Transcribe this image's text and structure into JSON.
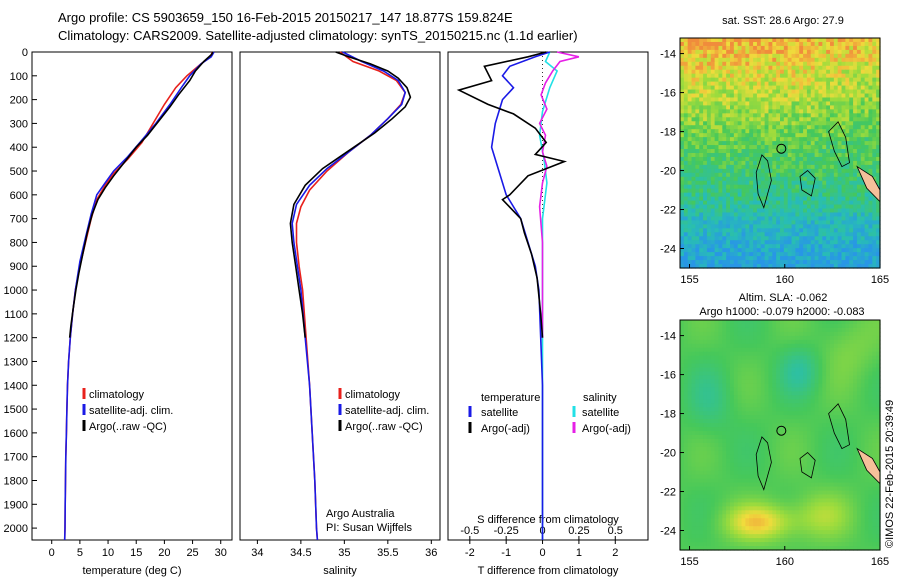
{
  "header": {
    "line1": "Argo profile: CS 5903659_150 16-Feb-2015 20150217_147 18.877S 159.824E",
    "line2": "Climatology: CARS2009. Satellite-adjusted climatology: synTS_20150215.nc (1.1d earlier)"
  },
  "credit": "©IMOS 22-Feb-2015 20:39:49",
  "colors": {
    "clim": "#e8211c",
    "sat": "#1a1ae6",
    "argo": "#000000",
    "sat_s": "#22e0e6",
    "argo_s": "#e620e6"
  },
  "chart_data": [
    {
      "type": "line",
      "name": "temperature",
      "xlabel": "temperature (deg C)",
      "ylabel": "",
      "xlim": [
        -3.5,
        32
      ],
      "ylim": [
        2050,
        0
      ],
      "xticks": [
        0,
        5,
        10,
        15,
        20,
        25,
        30
      ],
      "yticks": [
        0,
        100,
        200,
        300,
        400,
        500,
        600,
        700,
        800,
        900,
        1000,
        1100,
        1200,
        1300,
        1400,
        1500,
        1600,
        1700,
        1800,
        1900,
        2000
      ],
      "legend": [
        "climatology",
        "satellite-adj. clim.",
        "Argo(..raw -QC)"
      ],
      "series": [
        {
          "name": "climatology",
          "color": "clim",
          "points": [
            [
              28.5,
              0
            ],
            [
              28.2,
              20
            ],
            [
              26.5,
              50
            ],
            [
              24,
              100
            ],
            [
              22,
              150
            ],
            [
              20,
              220
            ],
            [
              18,
              300
            ],
            [
              16,
              380
            ],
            [
              13.5,
              450
            ],
            [
              11,
              510
            ],
            [
              9.5,
              560
            ],
            [
              8,
              620
            ],
            [
              7,
              700
            ],
            [
              6,
              800
            ],
            [
              5,
              900
            ],
            [
              4.2,
              1000
            ],
            [
              3.7,
              1100
            ],
            [
              3.3,
              1200
            ],
            [
              3,
              1300
            ],
            [
              2.8,
              1400
            ],
            [
              2.7,
              1500
            ],
            [
              2.6,
              1600
            ],
            [
              2.5,
              1700
            ],
            [
              2.45,
              1800
            ],
            [
              2.4,
              1900
            ],
            [
              2.35,
              2000
            ],
            [
              2.3,
              2050
            ]
          ]
        },
        {
          "name": "satellite-adj. clim.",
          "color": "sat",
          "points": [
            [
              28.8,
              0
            ],
            [
              28.3,
              20
            ],
            [
              26.5,
              50
            ],
            [
              24.5,
              100
            ],
            [
              23,
              150
            ],
            [
              21,
              220
            ],
            [
              18.5,
              300
            ],
            [
              16,
              370
            ],
            [
              13.5,
              440
            ],
            [
              11,
              500
            ],
            [
              9.5,
              550
            ],
            [
              8,
              600
            ],
            [
              7,
              680
            ],
            [
              6,
              780
            ],
            [
              5,
              880
            ],
            [
              4.2,
              1000
            ],
            [
              3.7,
              1100
            ],
            [
              3.3,
              1200
            ],
            [
              3,
              1300
            ],
            [
              2.8,
              1400
            ],
            [
              2.7,
              1500
            ],
            [
              2.6,
              1600
            ],
            [
              2.5,
              1700
            ],
            [
              2.45,
              1800
            ],
            [
              2.4,
              1900
            ],
            [
              2.35,
              2000
            ],
            [
              2.3,
              2050
            ]
          ]
        },
        {
          "name": "Argo(..raw -QC)",
          "color": "argo",
          "points": [
            [
              28.6,
              0
            ],
            [
              28.4,
              10
            ],
            [
              27,
              40
            ],
            [
              25.5,
              80
            ],
            [
              24.5,
              120
            ],
            [
              22.5,
              180
            ],
            [
              21,
              230
            ],
            [
              19,
              290
            ],
            [
              17,
              350
            ],
            [
              15,
              400
            ],
            [
              13,
              460
            ],
            [
              11,
              520
            ],
            [
              9.5,
              570
            ],
            [
              8.2,
              620
            ],
            [
              7.2,
              680
            ],
            [
              6.3,
              760
            ],
            [
              5.5,
              850
            ],
            [
              4.8,
              930
            ],
            [
              4.3,
              1000
            ],
            [
              3.8,
              1080
            ],
            [
              3.4,
              1150
            ],
            [
              3.2,
              1200
            ]
          ]
        }
      ]
    },
    {
      "type": "line",
      "name": "salinity",
      "xlabel": "salinity",
      "ylabel": "",
      "xlim": [
        33.8,
        36.1
      ],
      "ylim": [
        2050,
        0
      ],
      "xticks": [
        34,
        34.5,
        35,
        35.5,
        36
      ],
      "legend": [
        "climatology",
        "satellite-adj. clim.",
        "Argo(..raw -QC)"
      ],
      "annotation": [
        "Argo Australia",
        "PI: Susan Wijffels"
      ],
      "series": [
        {
          "name": "climatology",
          "color": "clim",
          "points": [
            [
              34.95,
              0
            ],
            [
              35.1,
              40
            ],
            [
              35.4,
              80
            ],
            [
              35.6,
              120
            ],
            [
              35.7,
              170
            ],
            [
              35.65,
              220
            ],
            [
              35.5,
              280
            ],
            [
              35.3,
              350
            ],
            [
              35.05,
              420
            ],
            [
              34.8,
              500
            ],
            [
              34.6,
              580
            ],
            [
              34.5,
              650
            ],
            [
              34.45,
              720
            ],
            [
              34.45,
              800
            ],
            [
              34.48,
              900
            ],
            [
              34.52,
              1000
            ],
            [
              34.56,
              1200
            ],
            [
              34.6,
              1400
            ],
            [
              34.63,
              1600
            ],
            [
              34.66,
              1800
            ],
            [
              34.68,
              2000
            ],
            [
              34.69,
              2050
            ]
          ]
        },
        {
          "name": "satellite-adj. clim.",
          "color": "sat",
          "points": [
            [
              34.98,
              0
            ],
            [
              35.2,
              40
            ],
            [
              35.45,
              80
            ],
            [
              35.62,
              120
            ],
            [
              35.7,
              170
            ],
            [
              35.66,
              220
            ],
            [
              35.5,
              280
            ],
            [
              35.3,
              350
            ],
            [
              35.05,
              420
            ],
            [
              34.8,
              490
            ],
            [
              34.6,
              560
            ],
            [
              34.45,
              640
            ],
            [
              34.4,
              720
            ],
            [
              34.42,
              800
            ],
            [
              34.46,
              900
            ],
            [
              34.5,
              1000
            ],
            [
              34.55,
              1200
            ],
            [
              34.6,
              1400
            ],
            [
              34.63,
              1600
            ],
            [
              34.66,
              1800
            ],
            [
              34.68,
              2000
            ],
            [
              34.69,
              2050
            ]
          ]
        },
        {
          "name": "Argo(..raw -QC)",
          "color": "argo",
          "points": [
            [
              34.9,
              0
            ],
            [
              35.05,
              20
            ],
            [
              35.3,
              50
            ],
            [
              35.5,
              80
            ],
            [
              35.62,
              110
            ],
            [
              35.72,
              150
            ],
            [
              35.76,
              190
            ],
            [
              35.7,
              230
            ],
            [
              35.55,
              280
            ],
            [
              35.35,
              340
            ],
            [
              35.15,
              390
            ],
            [
              34.95,
              440
            ],
            [
              34.75,
              490
            ],
            [
              34.55,
              560
            ],
            [
              34.42,
              640
            ],
            [
              34.38,
              720
            ],
            [
              34.4,
              800
            ],
            [
              34.44,
              900
            ],
            [
              34.48,
              1000
            ],
            [
              34.52,
              1100
            ],
            [
              34.55,
              1200
            ]
          ]
        }
      ]
    },
    {
      "type": "line",
      "name": "differences",
      "xlabel": "T difference from climatology",
      "xlim": [
        -2.6,
        2.9
      ],
      "ylim": [
        2050,
        0
      ],
      "xticks": [
        -2,
        -1,
        0,
        1,
        2
      ],
      "top_xlabel": "S difference from climatology",
      "top_ticks": [
        {
          "v": -0.5,
          "l": "-0.5"
        },
        {
          "v": -0.25,
          "l": "-0.25"
        },
        {
          "v": 0,
          "l": "0"
        },
        {
          "v": 0.25,
          "l": "0.25"
        },
        {
          "v": 0.5,
          "l": "0.5"
        }
      ],
      "s_scale": 4,
      "legend_t_title": "temperature",
      "legend_s_title": "salinity",
      "legend_t": [
        "satellite",
        "Argo(-adj)"
      ],
      "legend_s": [
        "satellite",
        "Argo(-adj)"
      ],
      "series": [
        {
          "name": "T satellite",
          "color": "sat",
          "points": [
            [
              0.2,
              0
            ],
            [
              -0.2,
              20
            ],
            [
              -0.9,
              60
            ],
            [
              -1.1,
              100
            ],
            [
              -0.8,
              150
            ],
            [
              -1.1,
              200
            ],
            [
              -1.3,
              300
            ],
            [
              -1.4,
              400
            ],
            [
              -1.2,
              500
            ],
            [
              -1.0,
              600
            ],
            [
              -0.6,
              700
            ],
            [
              -0.4,
              800
            ],
            [
              -0.2,
              900
            ],
            [
              -0.1,
              1000
            ],
            [
              -0.05,
              1200
            ],
            [
              0,
              1400
            ],
            [
              0,
              1600
            ],
            [
              0,
              1800
            ],
            [
              0,
              2000
            ],
            [
              0,
              2050
            ]
          ]
        },
        {
          "name": "T Argo(-adj)",
          "color": "argo",
          "points": [
            [
              0.1,
              0
            ],
            [
              -0.4,
              20
            ],
            [
              -1.6,
              60
            ],
            [
              -1.4,
              120
            ],
            [
              -2.3,
              160
            ],
            [
              -1.5,
              220
            ],
            [
              -0.8,
              260
            ],
            [
              -0.2,
              320
            ],
            [
              0.1,
              380
            ],
            [
              -0.2,
              430
            ],
            [
              0.6,
              460
            ],
            [
              -0.4,
              520
            ],
            [
              -0.9,
              600
            ],
            [
              -1.1,
              620
            ],
            [
              -0.6,
              700
            ],
            [
              -0.5,
              760
            ],
            [
              -0.3,
              850
            ],
            [
              -0.15,
              950
            ],
            [
              -0.05,
              1100
            ],
            [
              0,
              1200
            ]
          ]
        },
        {
          "name": "S satellite",
          "color": "sat_s",
          "points": [
            [
              0.05,
              0
            ],
            [
              0.02,
              40
            ],
            [
              0.1,
              80
            ],
            [
              0.05,
              150
            ],
            [
              0.0,
              250
            ],
            [
              -0.02,
              350
            ],
            [
              0.01,
              450
            ],
            [
              0.03,
              550
            ],
            [
              0.0,
              700
            ],
            [
              0.0,
              900
            ],
            [
              0.0,
              1200
            ],
            [
              0.0,
              1600
            ],
            [
              0.0,
              2000
            ],
            [
              0.0,
              2050
            ]
          ]
        },
        {
          "name": "S Argo(-adj)",
          "color": "argo_s",
          "points": [
            [
              0.1,
              0
            ],
            [
              0.25,
              20
            ],
            [
              0.12,
              40
            ],
            [
              0.07,
              80
            ],
            [
              0.02,
              130
            ],
            [
              -0.01,
              180
            ],
            [
              0.03,
              240
            ],
            [
              -0.02,
              300
            ],
            [
              0.02,
              350
            ],
            [
              0.0,
              420
            ],
            [
              0.03,
              480
            ],
            [
              0.0,
              550
            ],
            [
              -0.02,
              650
            ],
            [
              0.0,
              800
            ],
            [
              0.0,
              950
            ],
            [
              0.0,
              1100
            ],
            [
              0.0,
              1200
            ]
          ]
        }
      ]
    },
    {
      "type": "heatmap",
      "name": "sst_map",
      "title": "sat. SST: 28.6 Argo: 27.9",
      "xlim": [
        154.5,
        165
      ],
      "ylim": [
        -25,
        -13.2
      ],
      "xticks": [
        155,
        160,
        165
      ],
      "yticks": [
        -14,
        -16,
        -18,
        -20,
        -22,
        -24
      ],
      "marker": [
        159.82,
        -18.88
      ],
      "values_range_degC": [
        26.0,
        29.5
      ]
    },
    {
      "type": "heatmap",
      "name": "sla_map",
      "title_line1": "Altim. SLA: -0.062",
      "title_line2": "Argo h1000: -0.079 h2000: -0.083",
      "xlim": [
        154.5,
        165
      ],
      "ylim": [
        -25,
        -13.2
      ],
      "xticks": [
        155,
        160,
        165
      ],
      "yticks": [
        -14,
        -16,
        -18,
        -20,
        -22,
        -24
      ],
      "marker": [
        159.82,
        -18.88
      ]
    }
  ]
}
